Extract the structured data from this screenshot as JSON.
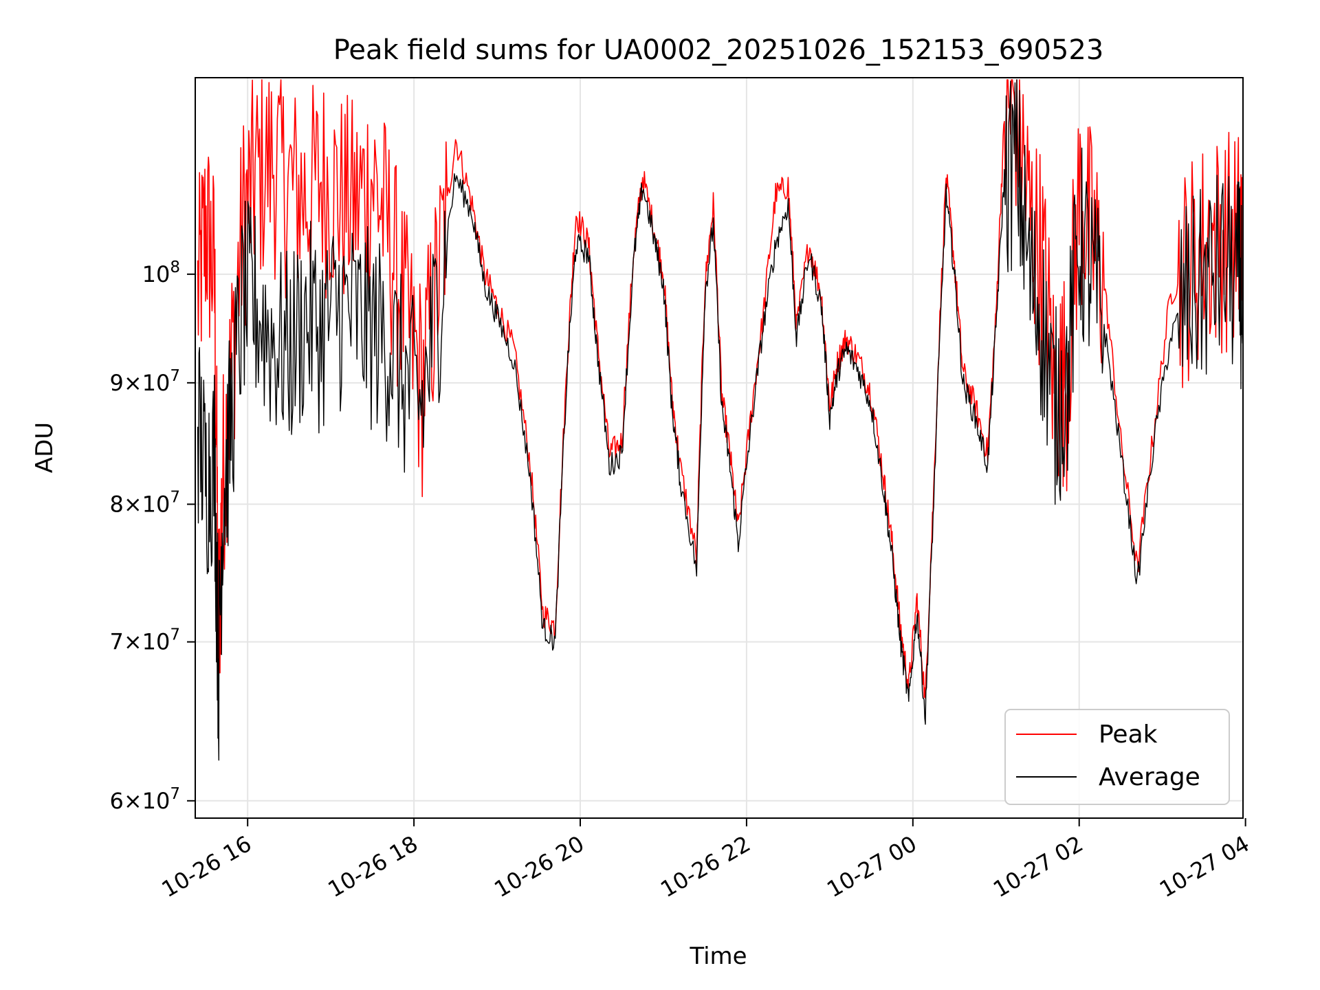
{
  "chart_data": {
    "type": "line",
    "title": "Peak field sums for UA0002_20251026_152153_690523",
    "xlabel": "Time",
    "ylabel": "ADU",
    "yscale": "log",
    "xlim_hours": [
      15.37,
      27.97
    ],
    "ylim": [
      59000000,
      121000000
    ],
    "grid": true,
    "x_ticks": [
      {
        "hours": 16,
        "label": "10-26 16"
      },
      {
        "hours": 18,
        "label": "10-26 18"
      },
      {
        "hours": 20,
        "label": "10-26 20"
      },
      {
        "hours": 22,
        "label": "10-26 22"
      },
      {
        "hours": 24,
        "label": "10-27 00"
      },
      {
        "hours": 26,
        "label": "10-27 02"
      },
      {
        "hours": 28,
        "label": "10-27 04"
      }
    ],
    "y_ticks": [
      {
        "value": 60000000,
        "base": "6",
        "exp": "7"
      },
      {
        "value": 70000000,
        "base": "7",
        "exp": "7"
      },
      {
        "value": 80000000,
        "base": "8",
        "exp": "7"
      },
      {
        "value": 90000000,
        "base": "9",
        "exp": "7"
      },
      {
        "value": 100000000,
        "base": "",
        "exp": "8"
      }
    ],
    "legend": {
      "position": "lower-right",
      "entries": [
        "Peak",
        "Average"
      ]
    },
    "series": [
      {
        "name": "Average",
        "color": "#000000",
        "x_hours": [
          15.4,
          15.5,
          15.6,
          15.65,
          15.7,
          15.8,
          15.95,
          16.1,
          16.3,
          16.5,
          16.7,
          16.9,
          17.1,
          17.3,
          17.5,
          17.7,
          17.9,
          18.1,
          18.3,
          18.5,
          18.7,
          18.85,
          19.0,
          19.2,
          19.4,
          19.55,
          19.7,
          19.85,
          19.95,
          20.1,
          20.2,
          20.35,
          20.5,
          20.65,
          20.75,
          20.9,
          21.0,
          21.1,
          21.2,
          21.4,
          21.5,
          21.6,
          21.7,
          21.8,
          21.9,
          22.05,
          22.2,
          22.35,
          22.5,
          22.6,
          22.75,
          22.9,
          23.0,
          23.1,
          23.2,
          23.35,
          23.5,
          23.65,
          23.75,
          23.85,
          23.95,
          24.05,
          24.15,
          24.25,
          24.4,
          24.5,
          24.6,
          24.75,
          24.9,
          25.0,
          25.1,
          25.25,
          25.4,
          25.55,
          25.7,
          25.85,
          26.0,
          26.15,
          26.3,
          26.5,
          26.7,
          26.9,
          27.1,
          27.3,
          27.5,
          27.7,
          27.9,
          27.97
        ],
        "values": [
          87000000,
          82000000,
          84000000,
          68000000,
          80000000,
          87000000,
          98000000,
          97000000,
          94000000,
          93000000,
          96000000,
          95000000,
          97000000,
          96000000,
          95000000,
          94000000,
          90000000,
          88000000,
          98000000,
          110000000,
          106000000,
          99000000,
          96000000,
          92000000,
          82000000,
          71000000,
          70000000,
          92000000,
          103000000,
          102000000,
          93000000,
          83000000,
          84000000,
          102000000,
          109000000,
          103000000,
          99000000,
          88000000,
          82000000,
          75000000,
          98000000,
          105000000,
          88000000,
          83000000,
          77000000,
          86000000,
          95000000,
          103000000,
          107000000,
          94000000,
          102000000,
          97000000,
          87000000,
          91000000,
          93000000,
          91000000,
          88000000,
          81000000,
          76000000,
          70000000,
          66000000,
          72000000,
          65000000,
          80000000,
          108000000,
          100000000,
          90000000,
          87000000,
          83000000,
          95000000,
          110000000,
          112000000,
          100000000,
          96000000,
          88000000,
          90000000,
          104000000,
          100000000,
          95000000,
          84000000,
          74000000,
          85000000,
          94000000,
          98000000,
          99000000,
          101000000,
          100000000,
          99000000
        ]
      },
      {
        "name": "Peak",
        "color": "#ff0000",
        "x_hours": [
          15.4,
          15.5,
          15.6,
          15.65,
          15.7,
          15.8,
          15.95,
          16.1,
          16.3,
          16.5,
          16.7,
          16.9,
          17.1,
          17.3,
          17.5,
          17.7,
          17.9,
          18.1,
          18.3,
          18.5,
          18.7,
          18.85,
          19.0,
          19.2,
          19.4,
          19.55,
          19.7,
          19.85,
          19.95,
          20.1,
          20.2,
          20.35,
          20.5,
          20.65,
          20.75,
          20.9,
          21.0,
          21.1,
          21.2,
          21.4,
          21.5,
          21.6,
          21.7,
          21.8,
          21.9,
          22.05,
          22.2,
          22.35,
          22.5,
          22.6,
          22.75,
          22.9,
          23.0,
          23.1,
          23.2,
          23.35,
          23.5,
          23.65,
          23.75,
          23.85,
          23.95,
          24.05,
          24.15,
          24.25,
          24.4,
          24.5,
          24.6,
          24.75,
          24.9,
          25.0,
          25.1,
          25.25,
          25.4,
          25.55,
          25.7,
          25.85,
          26.0,
          26.15,
          26.3,
          26.5,
          26.7,
          26.9,
          27.1,
          27.3,
          27.5,
          27.7,
          27.9,
          27.97
        ],
        "values": [
          98000000,
          105000000,
          100000000,
          70000000,
          82000000,
          91000000,
          106000000,
          110000000,
          112000000,
          109000000,
          108000000,
          110000000,
          108000000,
          107000000,
          110000000,
          104000000,
          96000000,
          90000000,
          100000000,
          114000000,
          107000000,
          100000000,
          97000000,
          93000000,
          83000000,
          72000000,
          71000000,
          93000000,
          106000000,
          103000000,
          94000000,
          84000000,
          85000000,
          103000000,
          110000000,
          104000000,
          100000000,
          89000000,
          83000000,
          76000000,
          99000000,
          107000000,
          89000000,
          84000000,
          78000000,
          87000000,
          96000000,
          108000000,
          109000000,
          95000000,
          103000000,
          98000000,
          88000000,
          92000000,
          94000000,
          92000000,
          89000000,
          82000000,
          77000000,
          71000000,
          67000000,
          73000000,
          66000000,
          81000000,
          110000000,
          101000000,
          91000000,
          88000000,
          84000000,
          96000000,
          116000000,
          118000000,
          106000000,
          102000000,
          90000000,
          91000000,
          108000000,
          104000000,
          99000000,
          85000000,
          75000000,
          86000000,
          98000000,
          101000000,
          103000000,
          104000000,
          104000000,
          104000000
        ]
      }
    ]
  }
}
